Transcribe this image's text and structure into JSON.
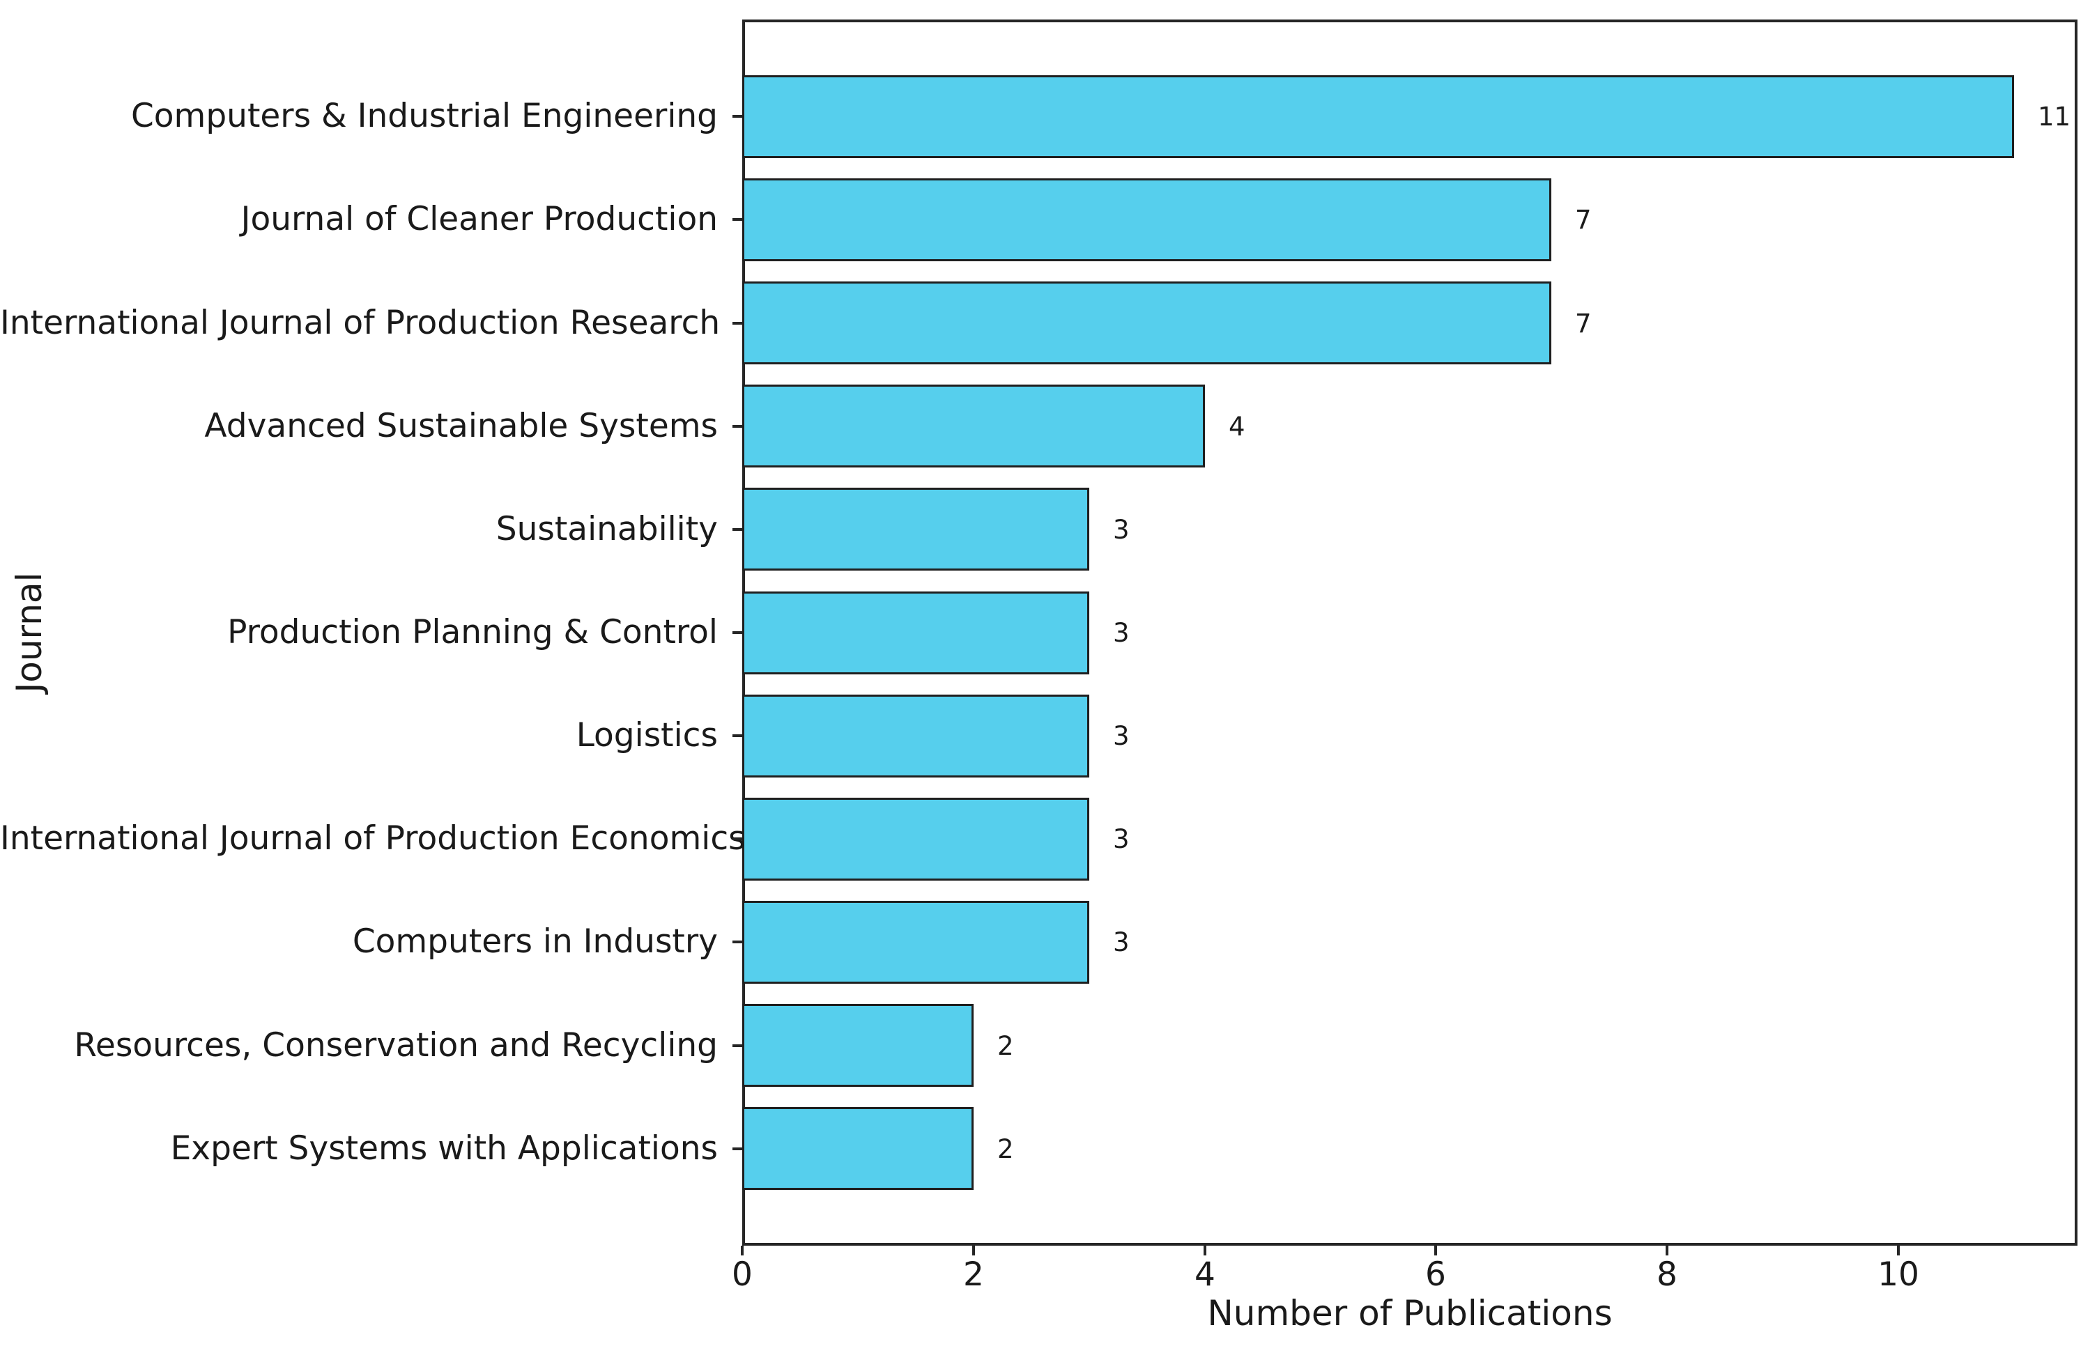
{
  "chart_data": {
    "type": "bar",
    "orientation": "horizontal",
    "title": "",
    "xlabel": "Number of Publications",
    "ylabel": "Journal",
    "categories": [
      "Computers & Industrial Engineering",
      "Journal of Cleaner Production",
      "International Journal of Production Research",
      "Advanced Sustainable Systems",
      "Sustainability",
      "Production Planning & Control",
      "Logistics",
      "International Journal of Production Economics",
      "Computers in Industry",
      "Resources, Conservation and Recycling",
      "Expert Systems with Applications"
    ],
    "values": [
      11,
      7,
      7,
      4,
      3,
      3,
      3,
      3,
      3,
      2,
      2
    ],
    "xticks": [
      0,
      2,
      4,
      6,
      8,
      10
    ],
    "xlim": [
      0,
      11.55
    ],
    "y_axis_units_total": 11.88,
    "y_top_margin_units": 0.94,
    "bar_height_units": 0.8,
    "grid": false,
    "legend": "none",
    "colors": {
      "bar_fill": "#56CFED",
      "bar_edge": "#1f1f1f",
      "spine": "#262626",
      "text": "#1a1a1a",
      "background": "#ffffff"
    }
  }
}
